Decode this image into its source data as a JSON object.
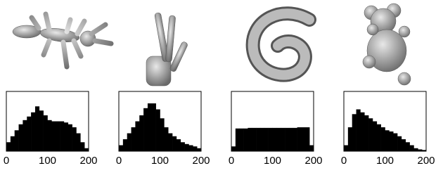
{
  "chart_data": [
    {
      "type": "histogram",
      "color": "#000000",
      "bins": [
        0,
        10,
        20,
        30,
        40,
        50,
        60,
        70,
        80,
        90,
        100,
        110,
        120,
        130,
        140,
        150,
        160,
        170,
        180,
        190,
        200
      ],
      "counts": [
        15,
        25,
        35,
        45,
        52,
        58,
        65,
        75,
        68,
        60,
        52,
        50,
        50,
        50,
        48,
        45,
        40,
        30,
        15,
        5
      ],
      "xlim": [
        0,
        200
      ],
      "xticks": [
        0,
        100,
        200
      ],
      "ylim": [
        0,
        100
      ]
    },
    {
      "type": "histogram",
      "color": "#000000",
      "bins": [
        0,
        10,
        20,
        30,
        40,
        50,
        60,
        70,
        80,
        90,
        100,
        110,
        120,
        130,
        140,
        150,
        160,
        170,
        180,
        190,
        200
      ],
      "counts": [
        10,
        20,
        30,
        40,
        50,
        60,
        72,
        80,
        80,
        70,
        55,
        40,
        30,
        25,
        20,
        15,
        12,
        10,
        8,
        5
      ],
      "xlim": [
        0,
        200
      ],
      "xticks": [
        0,
        100,
        200
      ],
      "ylim": [
        0,
        100
      ]
    },
    {
      "type": "histogram",
      "color": "#000000",
      "bins": [
        0,
        10,
        20,
        30,
        40,
        50,
        60,
        70,
        80,
        90,
        100,
        110,
        120,
        130,
        140,
        150,
        160,
        170,
        180,
        190,
        200
      ],
      "counts": [
        8,
        38,
        38,
        38,
        39,
        39,
        39,
        39,
        39,
        39,
        39,
        39,
        39,
        39,
        39,
        39,
        40,
        40,
        40,
        10
      ],
      "xlim": [
        0,
        200
      ],
      "xticks": [
        0,
        100,
        200
      ],
      "ylim": [
        0,
        100
      ]
    },
    {
      "type": "histogram",
      "color": "#000000",
      "bins": [
        0,
        10,
        20,
        30,
        40,
        50,
        60,
        70,
        80,
        90,
        100,
        110,
        120,
        130,
        140,
        150,
        160,
        170,
        180,
        190,
        200
      ],
      "counts": [
        10,
        40,
        62,
        70,
        65,
        60,
        55,
        50,
        45,
        40,
        35,
        33,
        30,
        25,
        20,
        15,
        10,
        5,
        3,
        2
      ],
      "xlim": [
        0,
        200
      ],
      "xticks": [
        0,
        100,
        200
      ],
      "ylim": [
        0,
        100
      ]
    }
  ]
}
